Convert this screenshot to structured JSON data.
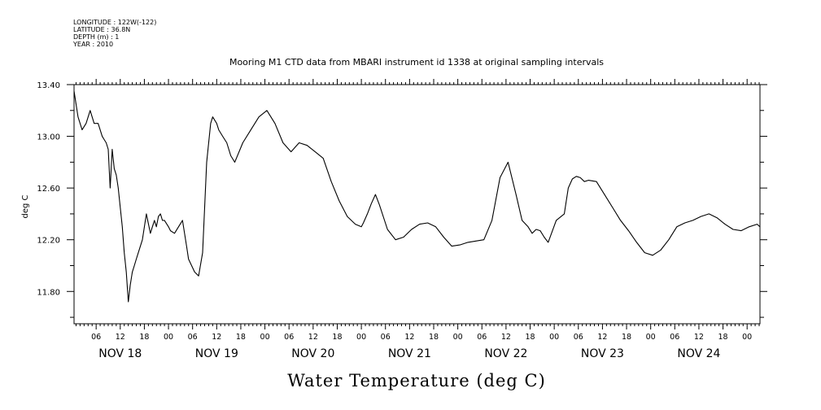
{
  "chart_data": {
    "type": "line",
    "metadata_lines": [
      "LONGITUDE : 122W(-122)",
      "LATITUDE : 36.8N",
      "DEPTH (m) : 1",
      "YEAR : 2010"
    ],
    "title": "Mooring M1 CTD data from MBARI instrument id 1338 at original sampling intervals",
    "xlabel": "Water Temperature (deg C)",
    "ylabel": "deg C",
    "ylim": [
      11.55,
      13.4
    ],
    "yticks": [
      13.4,
      13.0,
      12.6,
      12.2,
      11.8
    ],
    "ytick_labels": [
      "13.40",
      "13.00",
      "12.60",
      "12.20",
      "11.80"
    ],
    "xlim_hours_since_nov18_00": [
      0.5,
      171.2
    ],
    "hour_ticks": [
      6,
      12,
      18,
      0
    ],
    "hour_tick_labels": [
      "06",
      "12",
      "18",
      "00"
    ],
    "day_labels": [
      "NOV 18",
      "NOV 19",
      "NOV 20",
      "NOV 21",
      "NOV 22",
      "NOV 23",
      "NOV 24"
    ],
    "grid": false,
    "series": [
      {
        "x_hours_since_nov18_00": [
          0.5,
          1.5,
          2.5,
          3.5,
          4.5,
          5.5,
          6.5,
          7.5,
          8.5,
          9.0,
          9.5,
          10.0,
          10.5,
          11.0,
          11.5,
          12.0,
          12.5,
          13.0,
          13.5,
          14.0,
          14.5,
          15.0,
          15.5,
          16.0,
          16.5,
          17.5,
          18.5,
          19.5,
          20.0,
          20.5,
          21.0,
          21.5,
          22.0,
          22.5,
          23.0,
          24.0,
          24.5,
          25.5,
          26.5,
          27.5,
          28.0,
          28.5,
          29.0,
          30.5,
          31.5,
          32.5,
          33.5,
          34.5,
          35.0,
          36.0,
          36.5,
          37.5,
          38.5,
          39.5,
          40.5,
          42.5,
          44.5,
          46.5,
          48.5,
          50.5,
          52.5,
          54.5,
          56.5,
          58.5,
          60.5,
          62.5,
          64.5,
          66.5,
          68.5,
          70.5,
          72.0,
          72.5,
          73.5,
          74.5,
          75.5,
          76.5,
          78.5,
          80.5,
          82.5,
          84.5,
          86.5,
          88.5,
          90.5,
          92.5,
          94.5,
          96.5,
          98.5,
          100.5,
          102.5,
          104.5,
          106.5,
          108.5,
          110.5,
          112.0,
          113.5,
          114.5,
          115.5,
          116.5,
          117.5,
          118.5,
          120.5,
          122.5,
          123.5,
          124.5,
          125.5,
          126.5,
          127.5,
          128.5,
          130.5,
          132.5,
          134.5,
          136.5,
          138.5,
          140.5,
          142.5,
          144.5,
          146.5,
          148.5,
          150.5,
          152.5,
          154.5,
          156.5,
          158.5,
          160.5,
          162.5,
          164.5,
          166.5,
          168.5,
          170.5,
          171.2
        ],
        "values": [
          13.35,
          13.15,
          13.05,
          13.1,
          13.2,
          13.1,
          13.1,
          13.0,
          12.95,
          12.9,
          12.6,
          12.9,
          12.75,
          12.7,
          12.6,
          12.45,
          12.3,
          12.1,
          11.95,
          11.72,
          11.85,
          11.95,
          12.0,
          12.05,
          12.1,
          12.2,
          12.4,
          12.25,
          12.3,
          12.35,
          12.3,
          12.38,
          12.4,
          12.35,
          12.35,
          12.3,
          12.27,
          12.25,
          12.3,
          12.35,
          12.25,
          12.15,
          12.05,
          11.95,
          11.92,
          12.1,
          12.8,
          13.1,
          13.15,
          13.1,
          13.05,
          13.0,
          12.95,
          12.85,
          12.8,
          12.95,
          13.05,
          13.15,
          13.2,
          13.1,
          12.95,
          12.88,
          12.95,
          12.93,
          12.88,
          12.83,
          12.65,
          12.5,
          12.38,
          12.32,
          12.3,
          12.33,
          12.4,
          12.48,
          12.55,
          12.47,
          12.28,
          12.2,
          12.22,
          12.28,
          12.32,
          12.33,
          12.3,
          12.22,
          12.15,
          12.16,
          12.18,
          12.19,
          12.2,
          12.35,
          12.68,
          12.8,
          12.55,
          12.35,
          12.3,
          12.25,
          12.28,
          12.27,
          12.22,
          12.18,
          12.35,
          12.4,
          12.6,
          12.67,
          12.69,
          12.68,
          12.65,
          12.66,
          12.65,
          12.55,
          12.45,
          12.35,
          12.27,
          12.18,
          12.1,
          12.08,
          12.12,
          12.2,
          12.3,
          12.33,
          12.35,
          12.38,
          12.4,
          12.37,
          12.32,
          12.28,
          12.27,
          12.3,
          12.32,
          12.3,
          12.26,
          12.26
        ]
      }
    ]
  }
}
